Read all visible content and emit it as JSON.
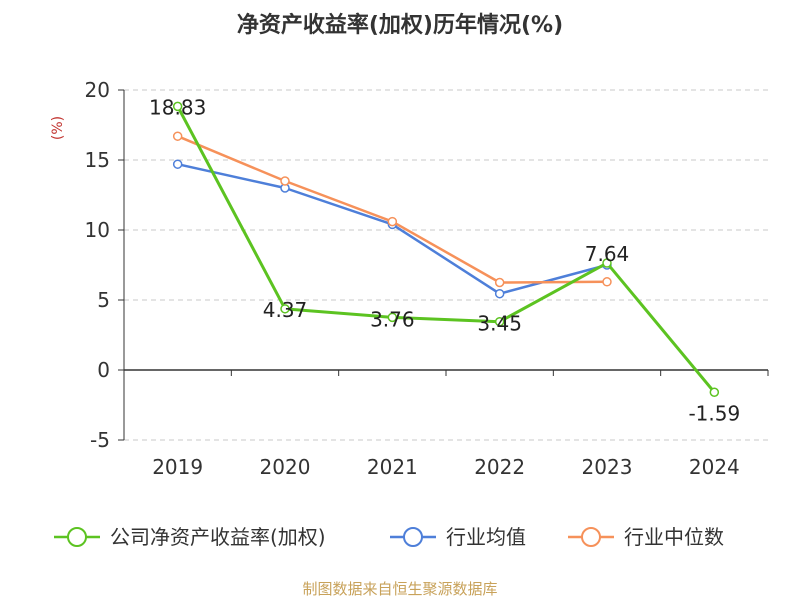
{
  "chart_data": {
    "type": "line",
    "title": "净资产收益率(加权)历年情况(%)",
    "ylabel": "(%)",
    "xlabel": "",
    "categories": [
      "2019",
      "2020",
      "2021",
      "2022",
      "2023",
      "2024"
    ],
    "ylim": [
      -5,
      20
    ],
    "yticks": [
      -5,
      0,
      5,
      10,
      15,
      20
    ],
    "grid": "horizontal-dashed",
    "legend_position": "bottom",
    "series": [
      {
        "name": "公司净资产收益率(加权)",
        "color": "#5cc321",
        "values": [
          18.83,
          4.37,
          3.76,
          3.45,
          7.64,
          -1.59
        ],
        "labels": [
          "18.83",
          "4.37",
          "3.76",
          "3.45",
          "7.64",
          "-1.59"
        ]
      },
      {
        "name": "行业均值",
        "color": "#4e7fd9",
        "values": [
          14.7,
          13.0,
          10.4,
          5.45,
          7.5,
          null
        ]
      },
      {
        "name": "行业中位数",
        "color": "#f6915a",
        "values": [
          16.7,
          13.5,
          10.6,
          6.25,
          6.3,
          null
        ]
      }
    ],
    "source": "制图数据来自恒生聚源数据库"
  }
}
